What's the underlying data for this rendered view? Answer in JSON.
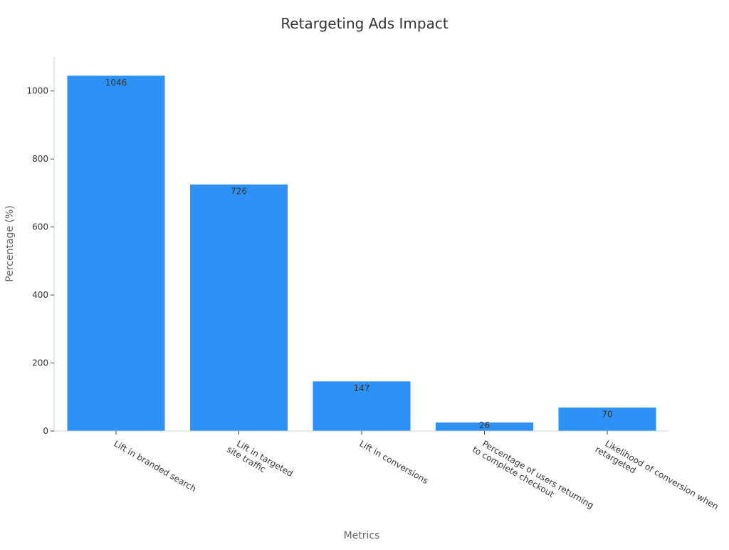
{
  "chart_data": {
    "type": "bar",
    "title": "Retargeting Ads Impact",
    "xlabel": "Metrics",
    "ylabel": "Percentage (%)",
    "ylim": [
      0,
      1100
    ],
    "yticks": [
      0,
      200,
      400,
      600,
      800,
      1000
    ],
    "grid": false,
    "categories": [
      "Lift in branded search",
      "Lift in targeted site traffic",
      "Lift in conversions",
      "Percentage of users returning to complete checkout",
      "Likelihood of conversion when retargeted"
    ],
    "category_lines": [
      [
        "Lift in branded search"
      ],
      [
        "Lift in targeted",
        "site traffic"
      ],
      [
        "Lift in conversions"
      ],
      [
        "Percentage of users returning",
        "to complete checkout"
      ],
      [
        "Likelihood of conversion when",
        "retargeted"
      ]
    ],
    "values": [
      1046,
      726,
      147,
      26,
      70
    ],
    "data_labels": [
      "1046",
      "726",
      "147",
      "26",
      "70"
    ],
    "colors": {
      "bar": "#2d91f5",
      "bar_edge": "#ffffff",
      "axis": "#d0d0d0"
    }
  }
}
